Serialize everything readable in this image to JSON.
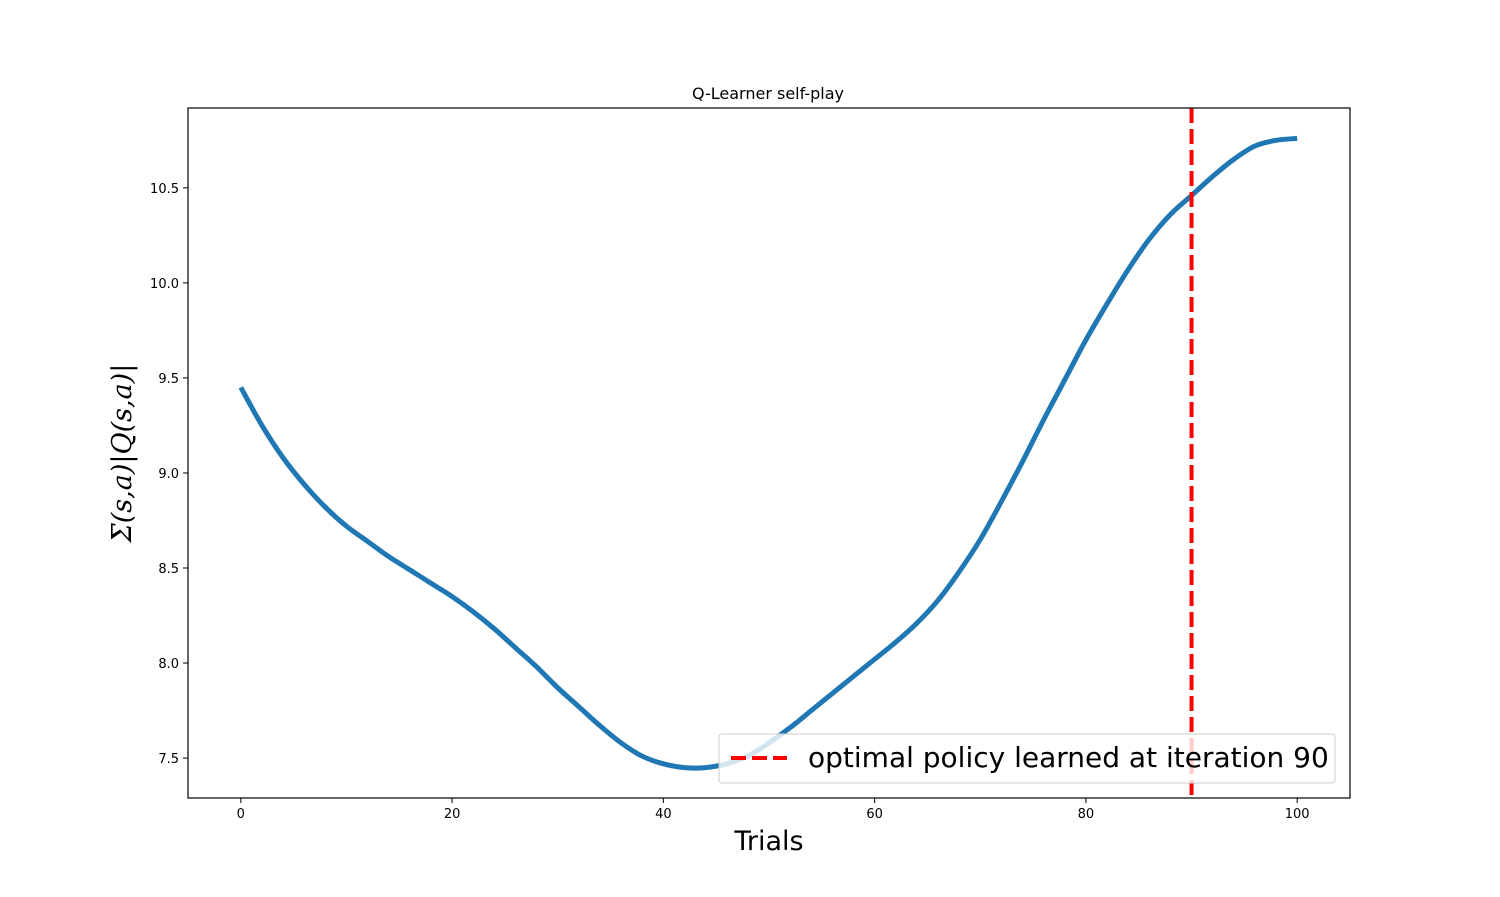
{
  "chart_data": {
    "type": "line",
    "title": "Q-Learner self-play",
    "xlabel": "Trials",
    "ylabel": "Σ(s,a)|Q(s,a)|",
    "xlim": [
      -5,
      105
    ],
    "ylim": [
      7.29,
      10.92
    ],
    "xticks": [
      0,
      20,
      40,
      60,
      80,
      100
    ],
    "xtick_labels": [
      "0",
      "20",
      "40",
      "60",
      "80",
      "100"
    ],
    "yticks": [
      7.5,
      8.0,
      8.5,
      9.0,
      9.5,
      10.0,
      10.5
    ],
    "ytick_labels": [
      "7.5",
      "8.0",
      "8.5",
      "9.0",
      "9.5",
      "10.0",
      "10.5"
    ],
    "grid": false,
    "legend_position": "lower-right",
    "series": [
      {
        "name": "",
        "color": "#1f77b4",
        "x": [
          0,
          2,
          4,
          6,
          8,
          10,
          12,
          14,
          16,
          18,
          20,
          22,
          24,
          26,
          28,
          30,
          32,
          34,
          36,
          38,
          40,
          42,
          44,
          46,
          48,
          50,
          52,
          54,
          56,
          58,
          60,
          62,
          64,
          66,
          68,
          70,
          72,
          74,
          76,
          78,
          80,
          82,
          84,
          86,
          88,
          90,
          92,
          94,
          96,
          98,
          100
        ],
        "y": [
          9.45,
          9.25,
          9.08,
          8.94,
          8.82,
          8.72,
          8.64,
          8.56,
          8.49,
          8.42,
          8.35,
          8.27,
          8.18,
          8.08,
          7.98,
          7.87,
          7.77,
          7.67,
          7.58,
          7.51,
          7.47,
          7.45,
          7.45,
          7.47,
          7.51,
          7.58,
          7.66,
          7.75,
          7.84,
          7.93,
          8.02,
          8.11,
          8.21,
          8.33,
          8.48,
          8.65,
          8.85,
          9.06,
          9.28,
          9.49,
          9.7,
          9.89,
          10.07,
          10.23,
          10.36,
          10.46,
          10.56,
          10.65,
          10.72,
          10.75,
          10.76
        ]
      }
    ],
    "vline": {
      "x": 90,
      "color": "#ff0000",
      "label": "optimal policy learned at iteration 90"
    }
  }
}
